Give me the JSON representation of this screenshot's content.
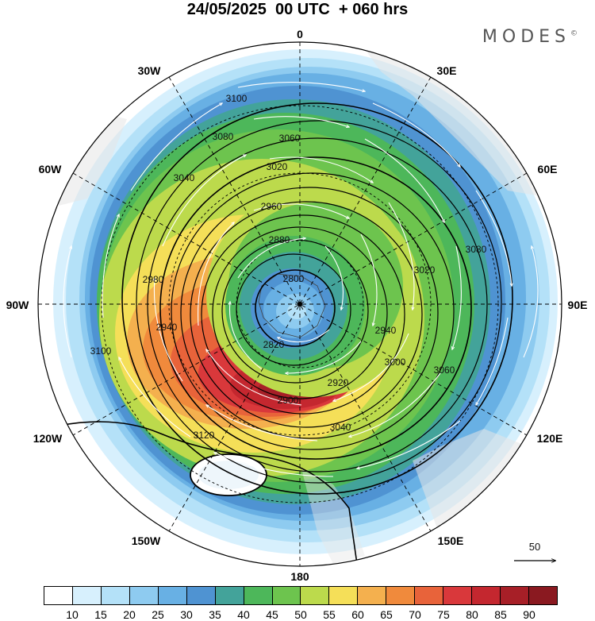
{
  "title": "24/05/2025  00 UTC  + 060 hrs",
  "brand": {
    "name": "MODES",
    "mark": "©"
  },
  "map": {
    "projection": "south polar stereographic",
    "longitude_labels": [
      "0",
      "30E",
      "60E",
      "90E",
      "120E",
      "150E",
      "180",
      "150W",
      "120W",
      "90W",
      "60W",
      "30W"
    ],
    "contour_labels": [
      "3100",
      "3080",
      "3060",
      "3040",
      "3020",
      "2980",
      "2960",
      "2940",
      "2920",
      "2900",
      "2880",
      "2820",
      "2800",
      "3080",
      "3060",
      "3020",
      "3000",
      "2940",
      "3040",
      "3100",
      "3120"
    ],
    "vector_reference": {
      "value": "50"
    }
  },
  "colorbar": {
    "ticks": [
      "10",
      "15",
      "20",
      "25",
      "30",
      "35",
      "40",
      "45",
      "50",
      "55",
      "60",
      "65",
      "70",
      "75",
      "80",
      "85",
      "90"
    ],
    "colors": [
      "#ffffff",
      "#d7f0fd",
      "#b4e1f8",
      "#8ecbf0",
      "#68b0e4",
      "#4f93d2",
      "#43a39a",
      "#4db75a",
      "#6dc44e",
      "#bcda4c",
      "#f5df58",
      "#f4b04e",
      "#f08a3c",
      "#e8633a",
      "#d9383b",
      "#c4272f",
      "#a71f27",
      "#8a1920"
    ]
  }
}
